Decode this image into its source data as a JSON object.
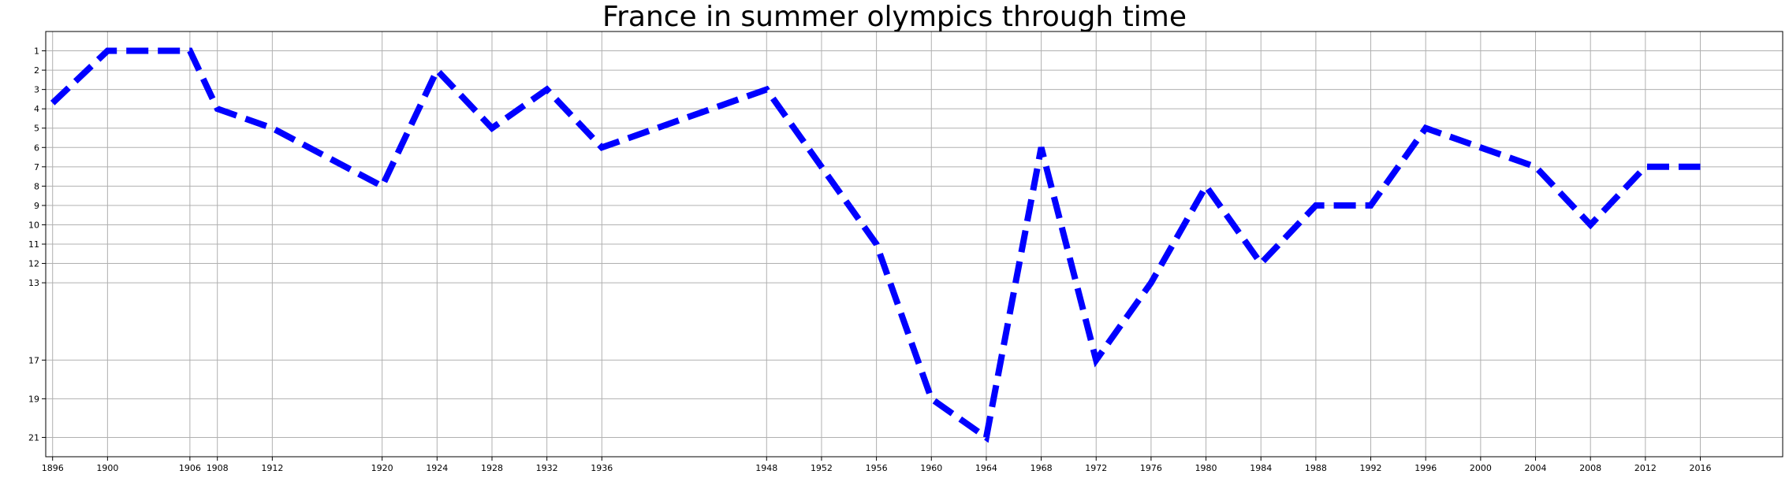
{
  "chart_data": {
    "type": "line",
    "title": "France in summer olympics through time",
    "xlabel": "",
    "ylabel": "",
    "x": [
      1896,
      1900,
      1906,
      1908,
      1912,
      1920,
      1924,
      1928,
      1932,
      1936,
      1948,
      1952,
      1956,
      1960,
      1964,
      1968,
      1972,
      1976,
      1980,
      1984,
      1988,
      1992,
      1996,
      2000,
      2004,
      2008,
      2012,
      2016
    ],
    "x_ticks": [
      1896,
      1900,
      1906,
      1908,
      1912,
      1920,
      1924,
      1928,
      1932,
      1936,
      1948,
      1952,
      1956,
      1960,
      1964,
      1968,
      1972,
      1976,
      1980,
      1984,
      1988,
      1992,
      1996,
      2000,
      2004,
      2008,
      2012,
      2016
    ],
    "y_ticks": [
      1,
      2,
      3,
      4,
      5,
      6,
      7,
      8,
      9,
      10,
      11,
      12,
      13,
      17,
      19,
      21
    ],
    "y_inverted": true,
    "xlim": [
      1895.5,
      2022.0
    ],
    "ylim": [
      22.0,
      0.0
    ],
    "grid": true,
    "series": [
      {
        "values": [
          3.7,
          1,
          1,
          4,
          5,
          8,
          2,
          5,
          3,
          6,
          3,
          7,
          11,
          19,
          21,
          6,
          17,
          13,
          8,
          12,
          9,
          9,
          5,
          6,
          7,
          10,
          7,
          7
        ],
        "color": "#0000ff",
        "line_style": "dashed"
      }
    ]
  }
}
